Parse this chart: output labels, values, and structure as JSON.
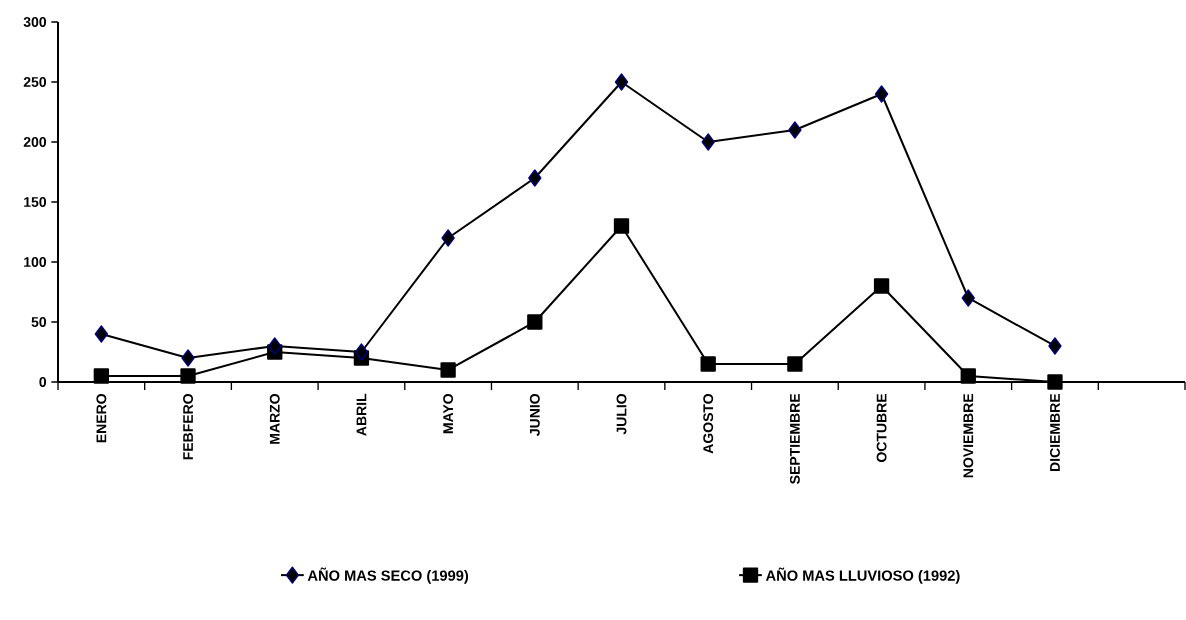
{
  "chart_data": {
    "type": "line",
    "categories": [
      "ENERO",
      "FEBFERO",
      "MARZO",
      "ABRIL",
      "MAYO",
      "JUNIO",
      "JULIO",
      "AGOSTO",
      "SEPTIEMBRE",
      "OCTUBRE",
      "NOVIEMBRE",
      "DICIEMBRE"
    ],
    "series": [
      {
        "name": "AÑO MAS SECO (1999)",
        "color": "#000000",
        "marker": "diamond",
        "values": [
          40,
          20,
          30,
          25,
          120,
          170,
          250,
          200,
          210,
          240,
          70,
          30
        ]
      },
      {
        "name": "AÑO MAS LLUVIOSO (1992)",
        "color": "#000000",
        "marker": "square",
        "values": [
          5,
          5,
          25,
          20,
          10,
          50,
          130,
          15,
          15,
          80,
          5,
          0
        ]
      }
    ],
    "ylim": [
      0,
      300
    ],
    "yticks": [
      0,
      50,
      100,
      150,
      200,
      250,
      300
    ],
    "grid": false,
    "legend": "bottom",
    "line_style": "solid"
  }
}
